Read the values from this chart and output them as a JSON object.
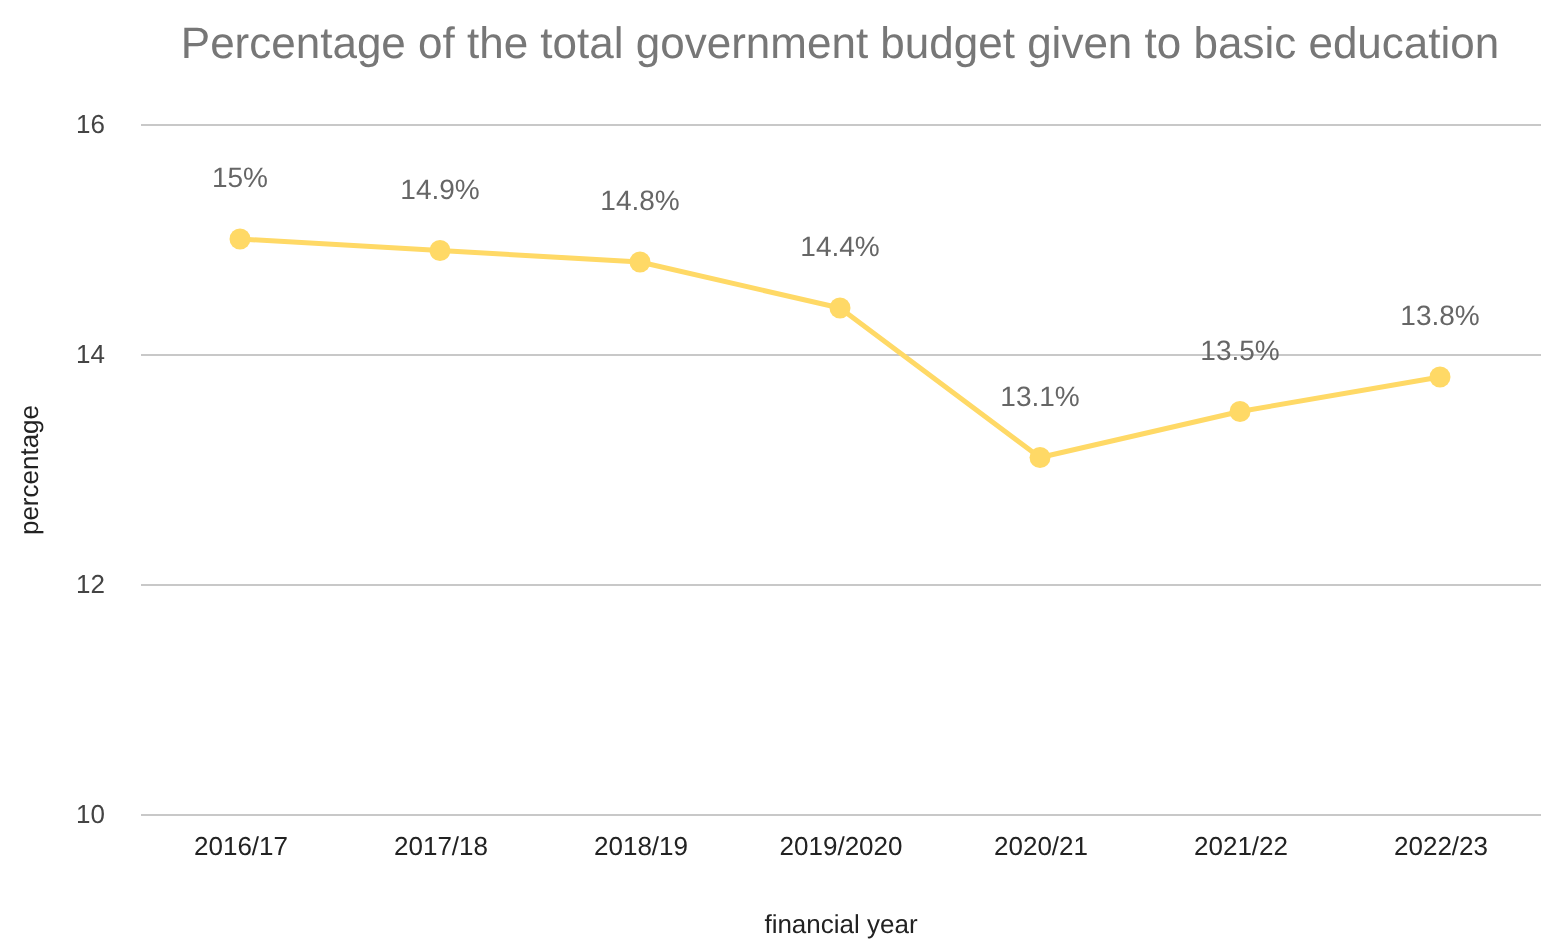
{
  "chart_data": {
    "type": "line",
    "title": "Percentage of the total government budget given to basic education",
    "xlabel": "financial year",
    "ylabel": "percentage",
    "categories": [
      "2016/17",
      "2017/18",
      "2018/19",
      "2019/2020",
      "2020/21",
      "2021/22",
      "2022/23"
    ],
    "series": [
      {
        "color": "#ffd966",
        "values": [
          15,
          14.9,
          14.8,
          14.4,
          13.1,
          13.5,
          13.8
        ],
        "value_labels": [
          "15%",
          "14.9%",
          "14.8%",
          "14.4%",
          "13.1%",
          "13.5%",
          "13.8%"
        ]
      }
    ],
    "ylim": [
      10,
      16
    ],
    "yticks": [
      10,
      12,
      14,
      16
    ],
    "grid": "y",
    "marker": "circle",
    "line_style": "solid"
  }
}
